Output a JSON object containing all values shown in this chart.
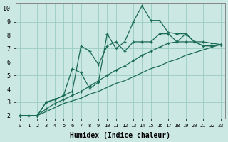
{
  "xlabel": "Humidex (Indice chaleur)",
  "bg_color": "#cce8e2",
  "grid_color": "#99ccc4",
  "line_color": "#1a6b58",
  "xlim": [
    -0.5,
    23.5
  ],
  "ylim": [
    1.8,
    10.4
  ],
  "xticks": [
    0,
    1,
    2,
    3,
    4,
    5,
    6,
    7,
    8,
    9,
    10,
    11,
    12,
    13,
    14,
    15,
    16,
    17,
    18,
    19,
    20,
    21,
    22,
    23
  ],
  "yticks": [
    2,
    3,
    4,
    5,
    6,
    7,
    8,
    9,
    10
  ],
  "lines": [
    {
      "x": [
        0,
        1,
        2,
        3,
        4,
        5,
        6,
        7,
        8,
        9,
        10,
        11,
        12,
        13,
        14,
        15,
        16,
        17,
        18,
        19,
        20,
        21,
        22,
        23
      ],
      "y": [
        2.0,
        2.0,
        2.0,
        2.3,
        2.6,
        2.9,
        3.1,
        3.3,
        3.6,
        3.8,
        4.1,
        4.4,
        4.6,
        4.9,
        5.2,
        5.5,
        5.7,
        6.0,
        6.2,
        6.5,
        6.7,
        6.9,
        7.1,
        7.3
      ],
      "marker": false,
      "linestyle": "solid",
      "linewidth": 0.9
    },
    {
      "x": [
        0,
        1,
        2,
        3,
        4,
        5,
        6,
        7,
        8,
        9,
        10,
        11,
        12,
        13,
        14,
        15,
        16,
        17,
        18,
        19,
        20,
        21,
        22,
        23
      ],
      "y": [
        2.0,
        2.0,
        2.0,
        2.5,
        2.9,
        3.2,
        3.5,
        3.8,
        4.2,
        4.6,
        5.0,
        5.4,
        5.7,
        6.1,
        6.5,
        6.8,
        7.1,
        7.4,
        7.5,
        7.5,
        7.5,
        7.5,
        7.4,
        7.3
      ],
      "marker": true,
      "linestyle": "solid",
      "linewidth": 0.9
    },
    {
      "x": [
        0,
        1,
        2,
        3,
        4,
        5,
        6,
        7,
        8,
        9,
        10,
        11,
        12,
        13,
        14,
        15,
        16,
        17,
        18,
        19,
        20,
        21,
        22,
        23
      ],
      "y": [
        2.0,
        2.0,
        2.0,
        3.0,
        3.2,
        3.5,
        3.8,
        7.2,
        6.8,
        5.8,
        7.2,
        7.5,
        6.8,
        7.5,
        7.5,
        7.5,
        8.1,
        8.1,
        7.5,
        8.1,
        7.5,
        7.2,
        7.2,
        7.3
      ],
      "marker": true,
      "linestyle": "solid",
      "linewidth": 0.9
    },
    {
      "x": [
        0,
        1,
        2,
        3,
        4,
        5,
        6,
        7,
        8,
        9,
        10,
        11,
        12,
        13,
        14,
        15,
        16,
        17,
        18,
        19,
        20,
        21,
        22,
        23
      ],
      "y": [
        2.0,
        2.0,
        2.0,
        3.0,
        3.2,
        3.5,
        5.5,
        5.2,
        4.0,
        4.5,
        8.1,
        7.0,
        7.5,
        9.0,
        10.2,
        9.1,
        9.1,
        8.2,
        8.1,
        8.1,
        7.5,
        7.2,
        7.2,
        7.3
      ],
      "marker": true,
      "linestyle": "solid",
      "linewidth": 0.9
    }
  ]
}
